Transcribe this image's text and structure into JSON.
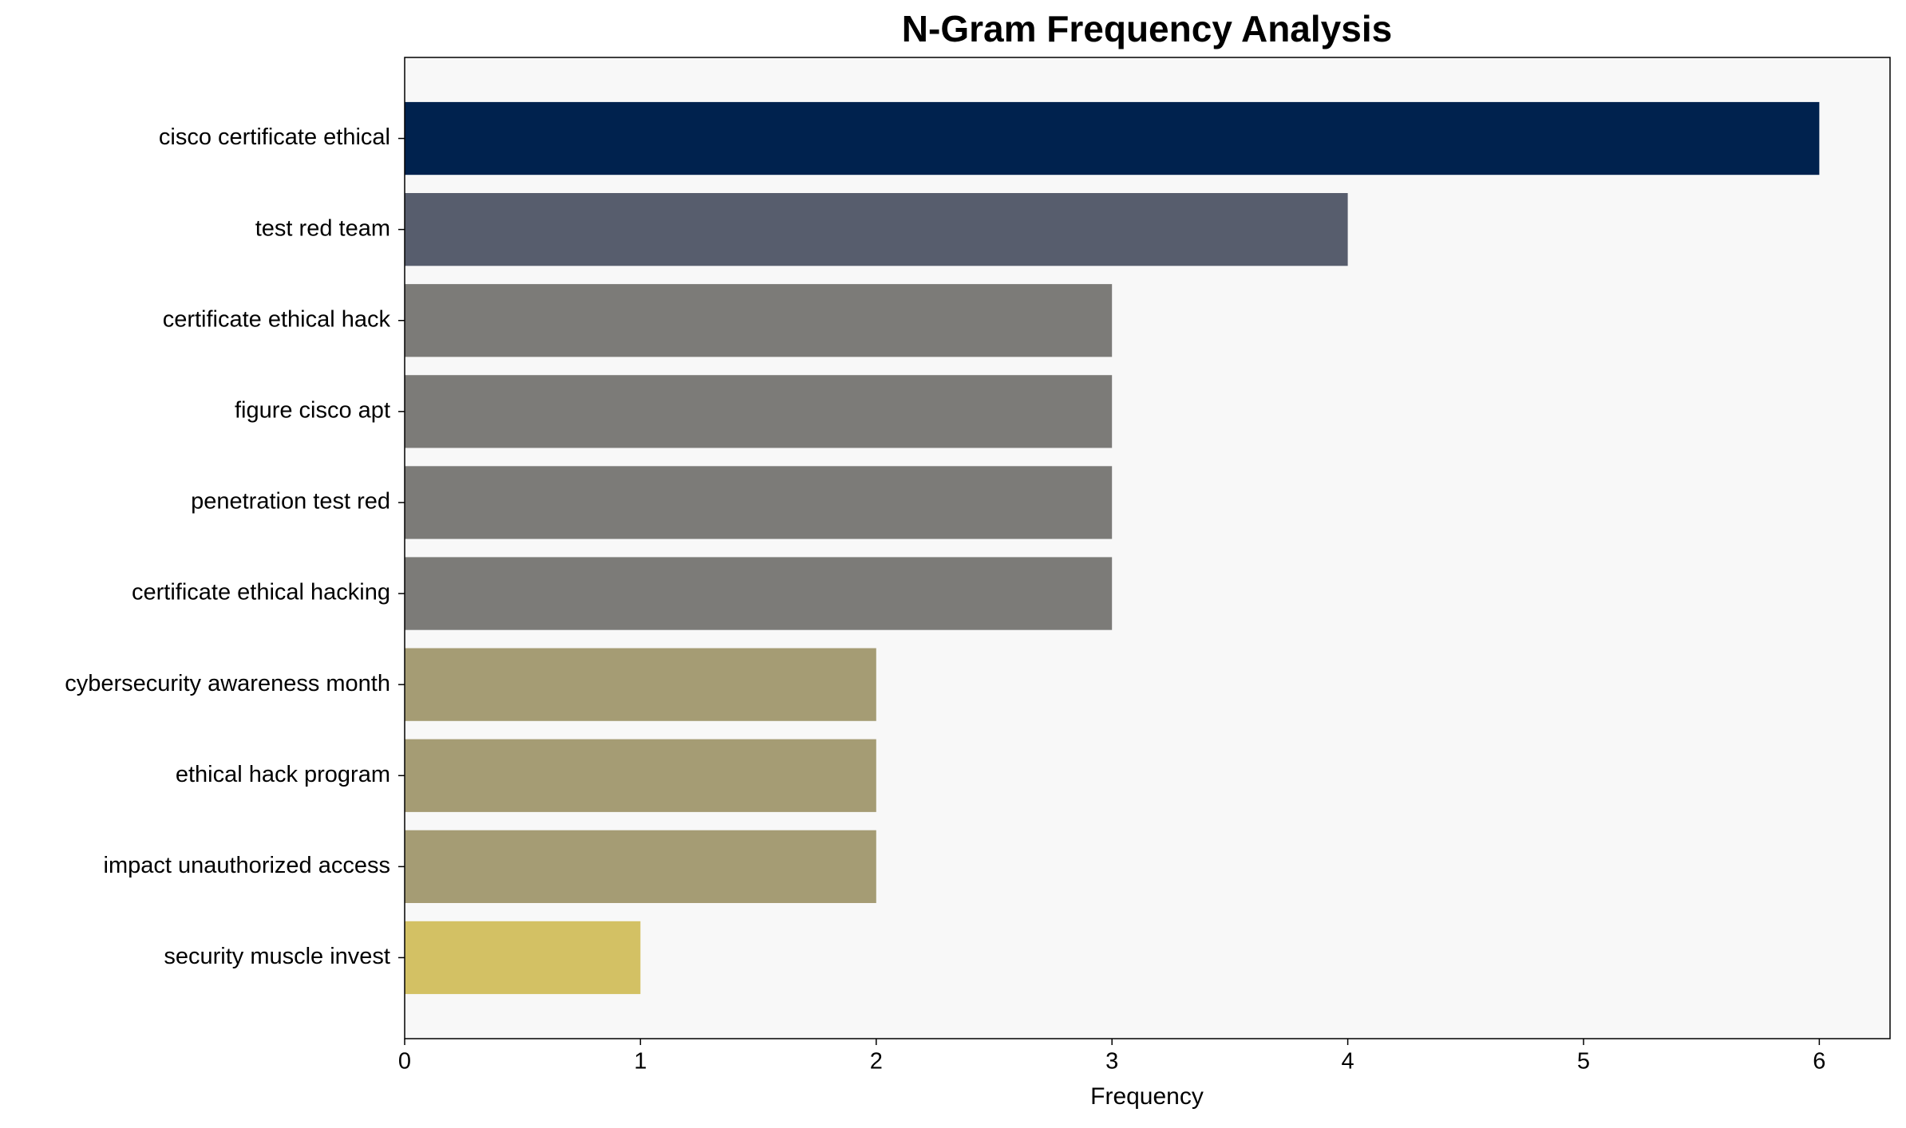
{
  "chart_data": {
    "type": "barh",
    "title": "N-Gram Frequency Analysis",
    "xlabel": "Frequency",
    "categories": [
      "cisco certificate ethical",
      "test red team",
      "certificate ethical hack",
      "figure cisco apt",
      "penetration test red",
      "certificate ethical hacking",
      "cybersecurity awareness month",
      "ethical hack program",
      "impact unauthorized access",
      "security muscle invest"
    ],
    "values": [
      6,
      4,
      3,
      3,
      3,
      3,
      2,
      2,
      2,
      1
    ],
    "colors": [
      "#00224e",
      "#575d6d",
      "#7c7b78",
      "#7c7b78",
      "#7c7b78",
      "#7c7b78",
      "#a59c74",
      "#a59c74",
      "#a59c74",
      "#d3c164"
    ],
    "xlim": [
      0,
      6.3
    ],
    "xticks": [
      0,
      1,
      2,
      3,
      4,
      5,
      6
    ],
    "grid": false
  }
}
